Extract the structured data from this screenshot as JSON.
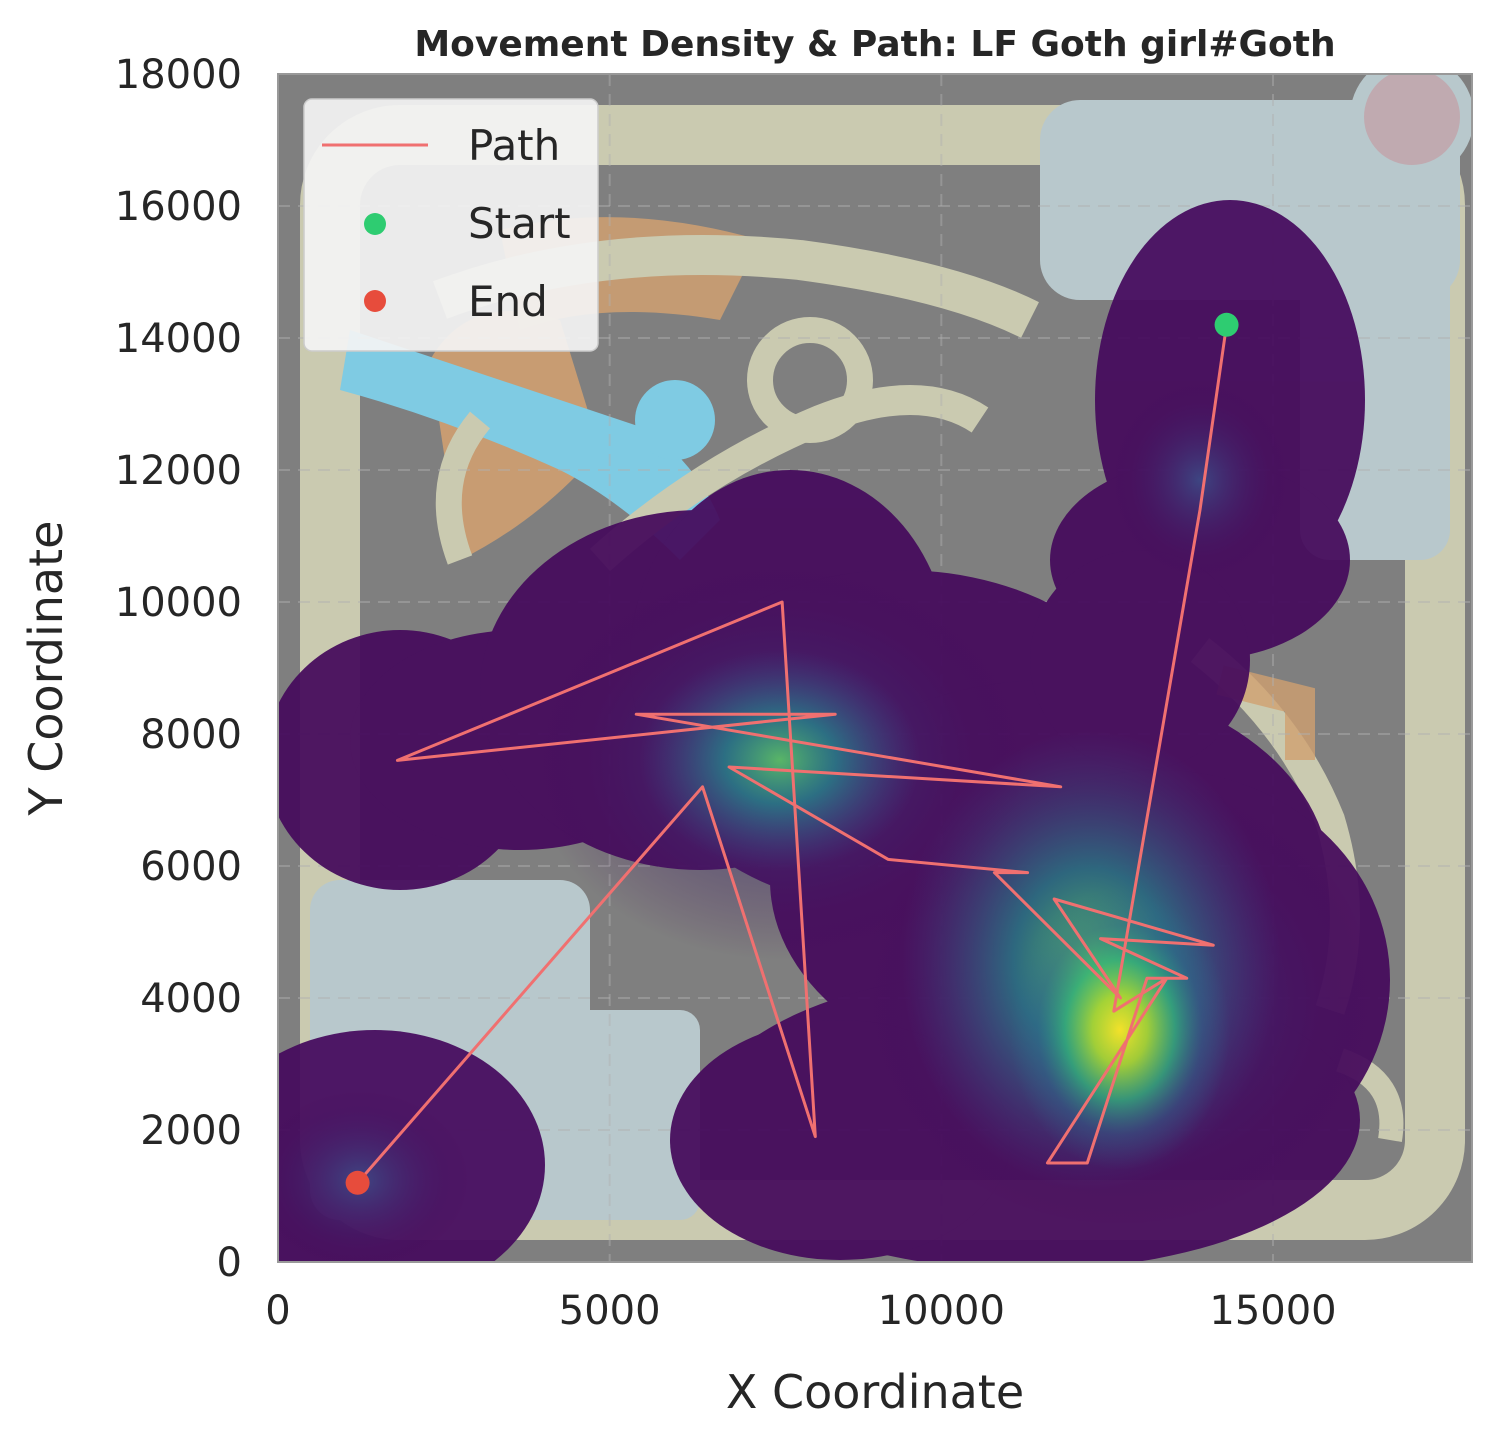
{
  "chart_data": {
    "type": "line",
    "title": "Movement Density & Path: LF Goth girl#Goth",
    "xlabel": "X Coordinate",
    "ylabel": "Y Coordinate",
    "xlim": [
      0,
      18000
    ],
    "ylim": [
      0,
      18000
    ],
    "x_ticks": [
      0,
      5000,
      10000,
      15000
    ],
    "y_ticks": [
      0,
      2000,
      4000,
      6000,
      8000,
      10000,
      12000,
      14000,
      16000,
      18000
    ],
    "x_tick_labels": [
      "0",
      "5000",
      "10000",
      "15000"
    ],
    "y_tick_labels": [
      "0",
      "2000",
      "4000",
      "6000",
      "8000",
      "10000",
      "12000",
      "14000",
      "16000",
      "18000"
    ],
    "grid": true,
    "legend_position": "top-left",
    "background": "game map image (Summoner's Rift style minimap)",
    "density_colormap": "viridis",
    "series": [
      {
        "name": "Path",
        "color": "#f07070",
        "points": [
          [
            14300,
            14200
          ],
          [
            13900,
            11400
          ],
          [
            12600,
            3800
          ],
          [
            13400,
            4300
          ],
          [
            11600,
            1500
          ],
          [
            12200,
            1500
          ],
          [
            13100,
            4300
          ],
          [
            13700,
            4300
          ],
          [
            12400,
            4900
          ],
          [
            14100,
            4800
          ],
          [
            11700,
            5500
          ],
          [
            12700,
            4000
          ],
          [
            10800,
            5900
          ],
          [
            11300,
            5900
          ],
          [
            9200,
            6100
          ],
          [
            6800,
            7500
          ],
          [
            11800,
            7200
          ],
          [
            5400,
            8300
          ],
          [
            8400,
            8300
          ],
          [
            1800,
            7600
          ],
          [
            7600,
            10000
          ],
          [
            8100,
            1900
          ],
          [
            6400,
            7200
          ],
          [
            1200,
            1200
          ]
        ]
      },
      {
        "name": "Start",
        "color": "#2ecc71",
        "points": [
          [
            14300,
            14200
          ]
        ]
      },
      {
        "name": "End",
        "color": "#e74c3c",
        "points": [
          [
            1200,
            1200
          ]
        ]
      }
    ]
  }
}
